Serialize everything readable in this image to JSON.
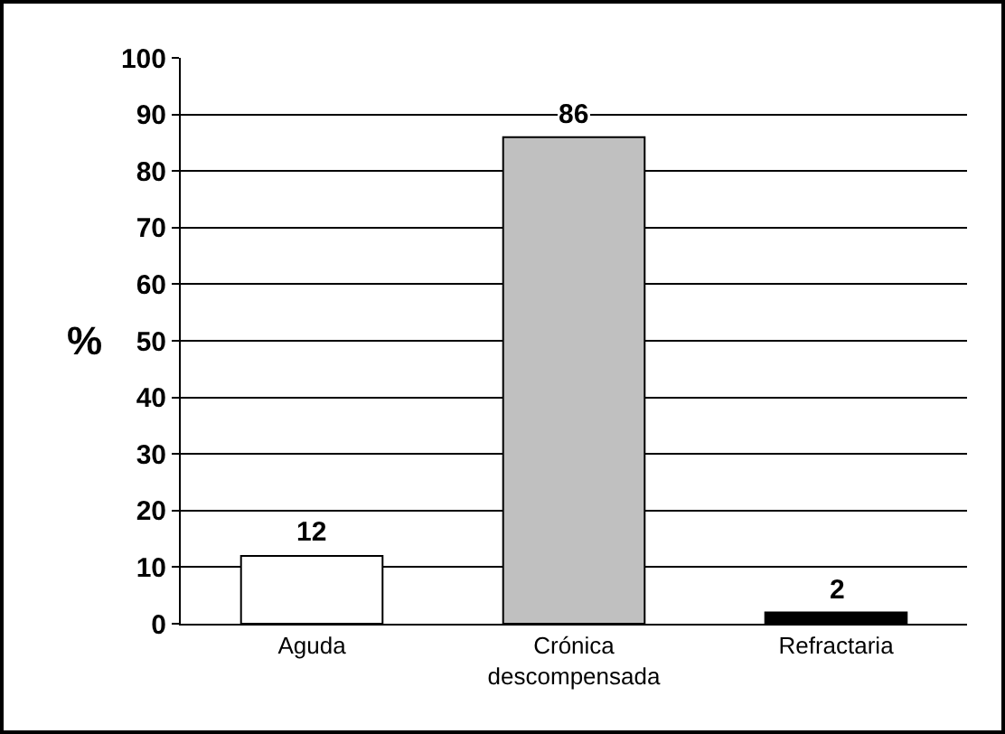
{
  "chart_data": {
    "type": "bar",
    "ylabel": "%",
    "categories": [
      "Aguda",
      "Crónica descompensada",
      "Refractaria"
    ],
    "values": [
      12,
      86,
      2
    ],
    "colors": [
      "#ffffff",
      "#c0c0c0",
      "#000000"
    ],
    "ylim": [
      0,
      100
    ],
    "yticks": [
      0,
      10,
      20,
      30,
      40,
      50,
      60,
      70,
      80,
      90,
      100
    ],
    "grid": "y",
    "data_labels": true
  }
}
